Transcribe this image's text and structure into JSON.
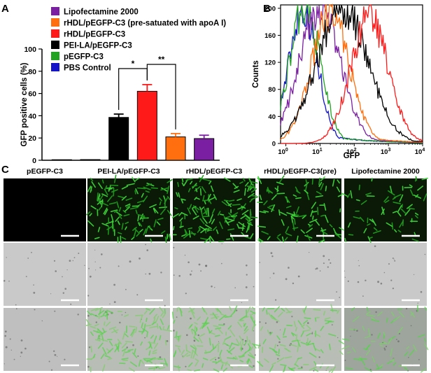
{
  "panel_labels": {
    "a": "A",
    "b": "B",
    "c": "C"
  },
  "colors": {
    "lipofectamine": "#7b1fa2",
    "rhdl_pre": "#ff6f0f",
    "rhdl": "#ff1a1a",
    "peila": "#000000",
    "pegfp": "#22a322",
    "pbs": "#1414c8",
    "scale_bar": "#ffffff"
  },
  "chart_data": [
    {
      "type": "bar",
      "panel": "A",
      "ylabel": "GFP positive cells (%)",
      "xlabel": "",
      "ylim": [
        0,
        100
      ],
      "yticks": [
        0,
        20,
        40,
        60,
        80,
        100
      ],
      "categories": [
        "PBS Control",
        "pEGFP-C3",
        "PEI-LA/pEGFP-C3",
        "rHDL/pEGFP-C3",
        "rHDL/pEGFP-C3 (pre-satuated with apoA I)",
        "Lipofectamine 2000"
      ],
      "values": [
        0.5,
        0.6,
        38.5,
        62,
        21,
        19.5
      ],
      "errors": [
        0.2,
        0.2,
        3,
        6,
        3,
        3
      ],
      "legend": [
        {
          "label": "Lipofectamine 2000",
          "color": "#7b1fa2"
        },
        {
          "label": "rHDL/pEGFP-C3 (pre-satuated with apoA I)",
          "color": "#ff6f0f"
        },
        {
          "label": "rHDL/pEGFP-C3",
          "color": "#ff1a1a"
        },
        {
          "label": "PEI-LA/pEGFP-C3",
          "color": "#000000"
        },
        {
          "label": "pEGFP-C3",
          "color": "#22a322"
        },
        {
          "label": "PBS Control",
          "color": "#1414c8"
        }
      ],
      "significance": [
        {
          "from": 2,
          "to": 3,
          "label": "*"
        },
        {
          "from": 3,
          "to": 4,
          "label": "**"
        }
      ]
    },
    {
      "type": "line",
      "panel": "B",
      "subtype": "flow cytometry histogram",
      "xlabel": "GFP",
      "ylabel": "Counts",
      "xscale": "log",
      "xlim": [
        0.7,
        10000
      ],
      "ylim": [
        0,
        205
      ],
      "yticks": [
        0,
        40,
        80,
        120,
        160,
        200
      ],
      "xticks": [
        {
          "base": "10",
          "exp": "0",
          "value": 1
        },
        {
          "base": "10",
          "exp": "1",
          "value": 10
        },
        {
          "base": "10",
          "exp": "2",
          "value": 100
        },
        {
          "base": "10",
          "exp": "3",
          "value": 1000
        },
        {
          "base": "10",
          "exp": "4",
          "value": 10000
        }
      ],
      "series": [
        {
          "name": "PBS Control",
          "color": "#1414c8",
          "peak_x": 3.2,
          "peak_y": 200,
          "sigma": 0.42
        },
        {
          "name": "pEGFP-C3",
          "color": "#22a322",
          "peak_x": 3.6,
          "peak_y": 200,
          "sigma": 0.45
        },
        {
          "name": "Lipofectamine 2000",
          "color": "#7b1fa2",
          "peak_x": 10,
          "peak_y": 200,
          "sigma": 0.6
        },
        {
          "name": "rHDL/pEGFP-C3 (pre)",
          "color": "#ff6f0f",
          "peak_x": 20,
          "peak_y": 195,
          "sigma": 0.55
        },
        {
          "name": "PEI-LA/pEGFP-C3",
          "color": "#000000",
          "peak_x": 45,
          "peak_y": 200,
          "sigma": 0.75
        },
        {
          "name": "rHDL/pEGFP-C3",
          "color": "#ff1a1a",
          "peak_x": 280,
          "peak_y": 185,
          "sigma": 0.55
        }
      ]
    }
  ],
  "micrograph": {
    "column_titles": [
      "pEGFP-C3",
      "PEI-LA/pEGFP-C3",
      "rHDL/pEGFP-C3",
      "rHDL/pEGFP-C3(pre)",
      "Lipofectamine 2000"
    ],
    "rows": [
      "fluorescence",
      "bright-field",
      "merged"
    ],
    "green_density": [
      0,
      0.78,
      0.92,
      0.6,
      0.38
    ]
  }
}
